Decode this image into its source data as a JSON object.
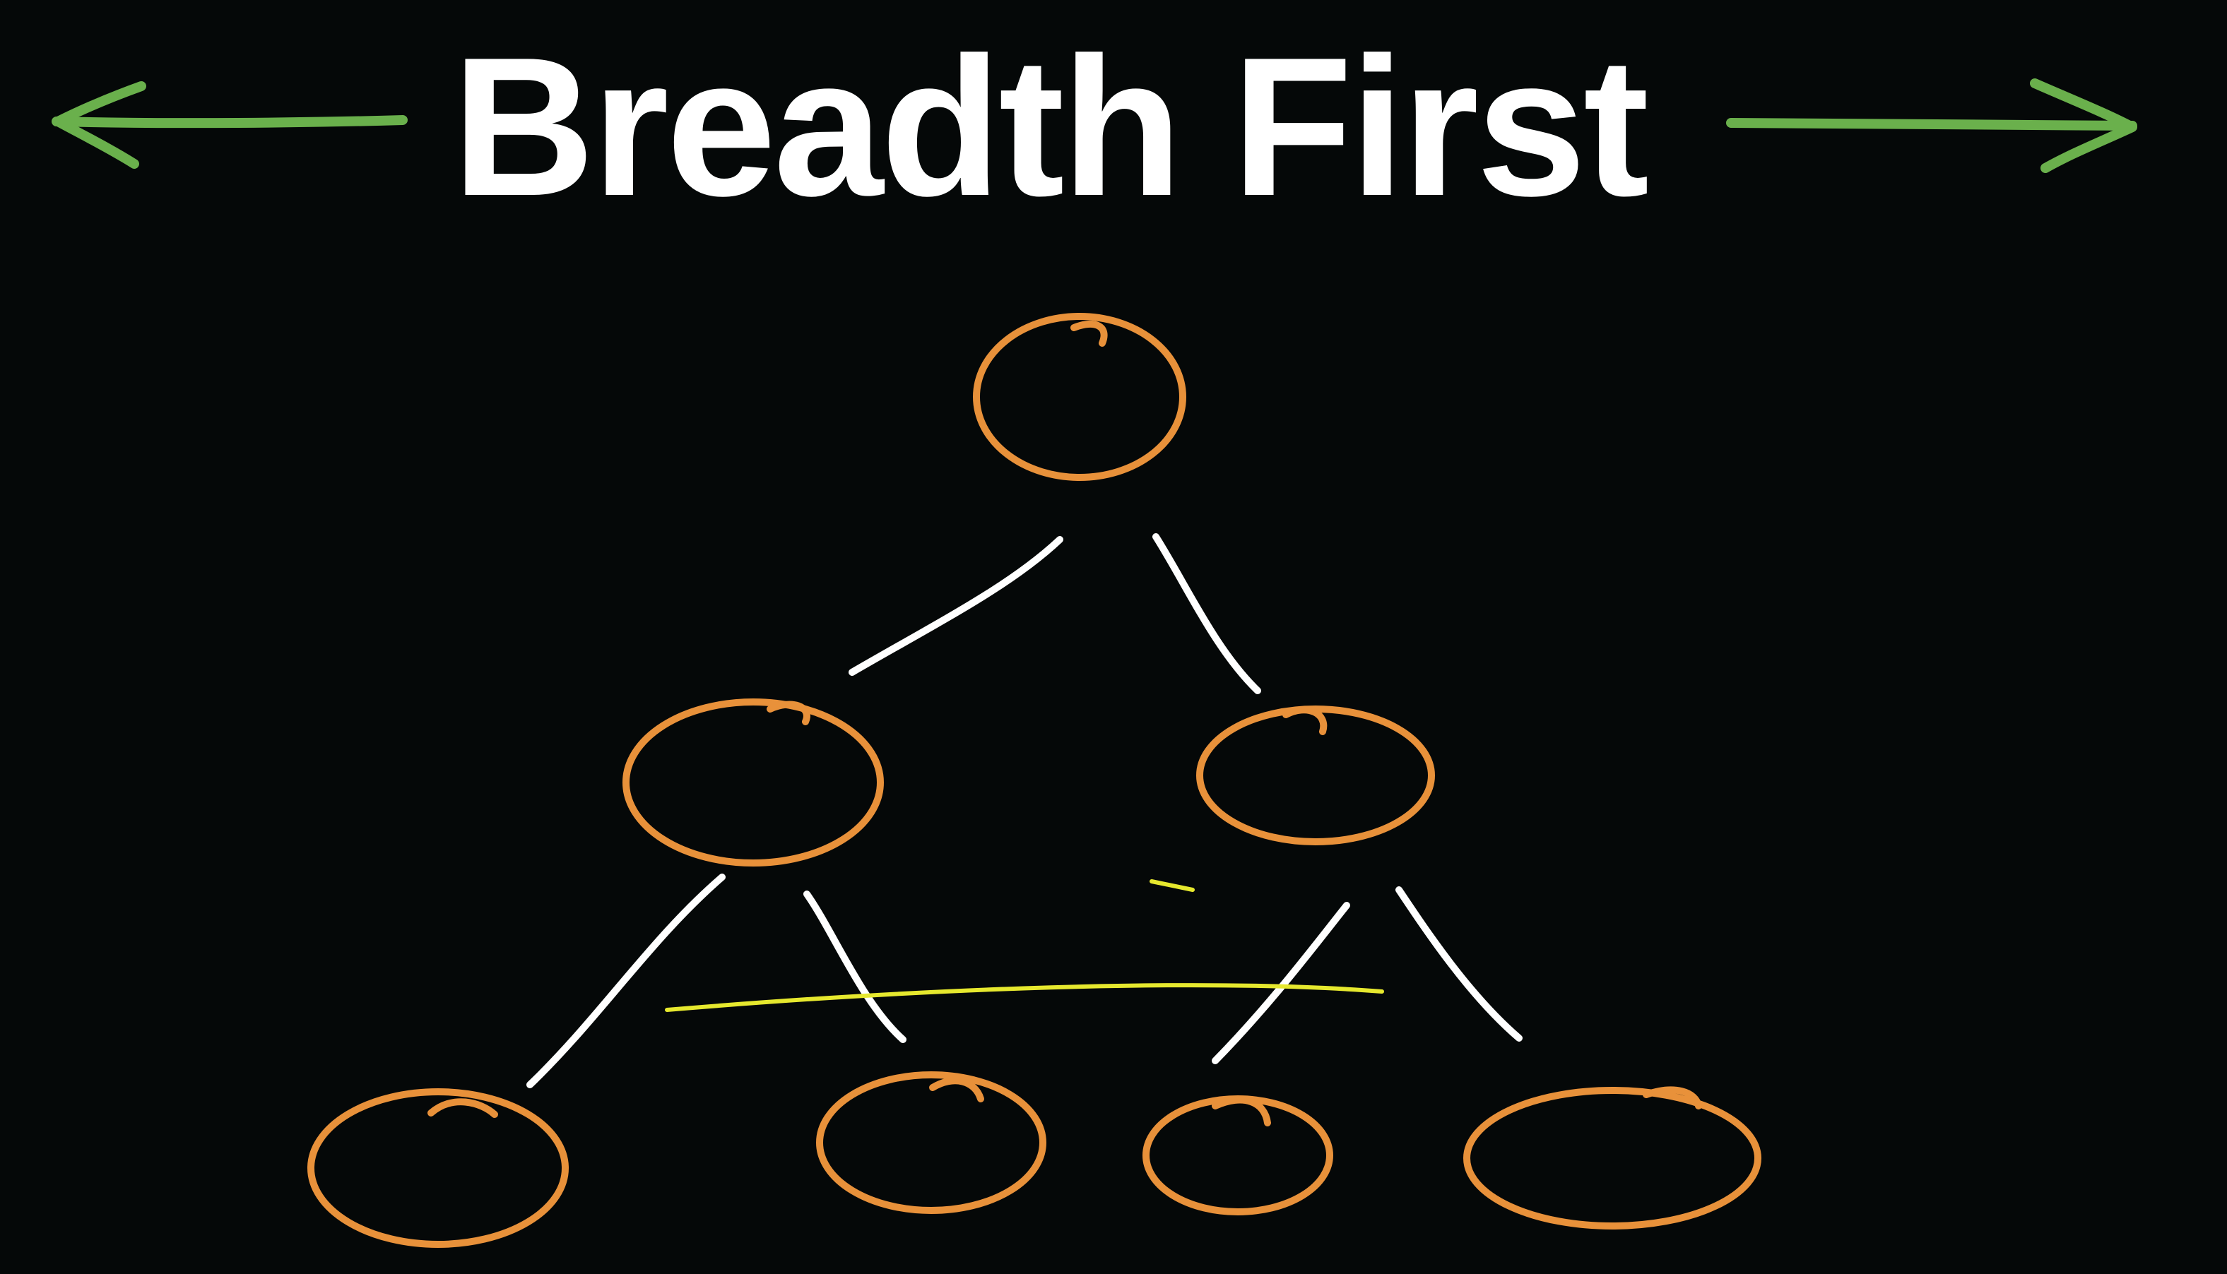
{
  "title": "Breadth First",
  "colors": {
    "background": "#050808",
    "title_text": "#ffffff",
    "arrow": "#6ab04c",
    "node_outline": "#e8913a",
    "edge": "#ffffff",
    "level_highlight": "#e6e82e"
  },
  "icons": {
    "left": "left-arrow-icon",
    "right": "right-arrow-icon"
  },
  "tree": {
    "levels": 3,
    "nodes_per_level": [
      1,
      2,
      4
    ]
  }
}
